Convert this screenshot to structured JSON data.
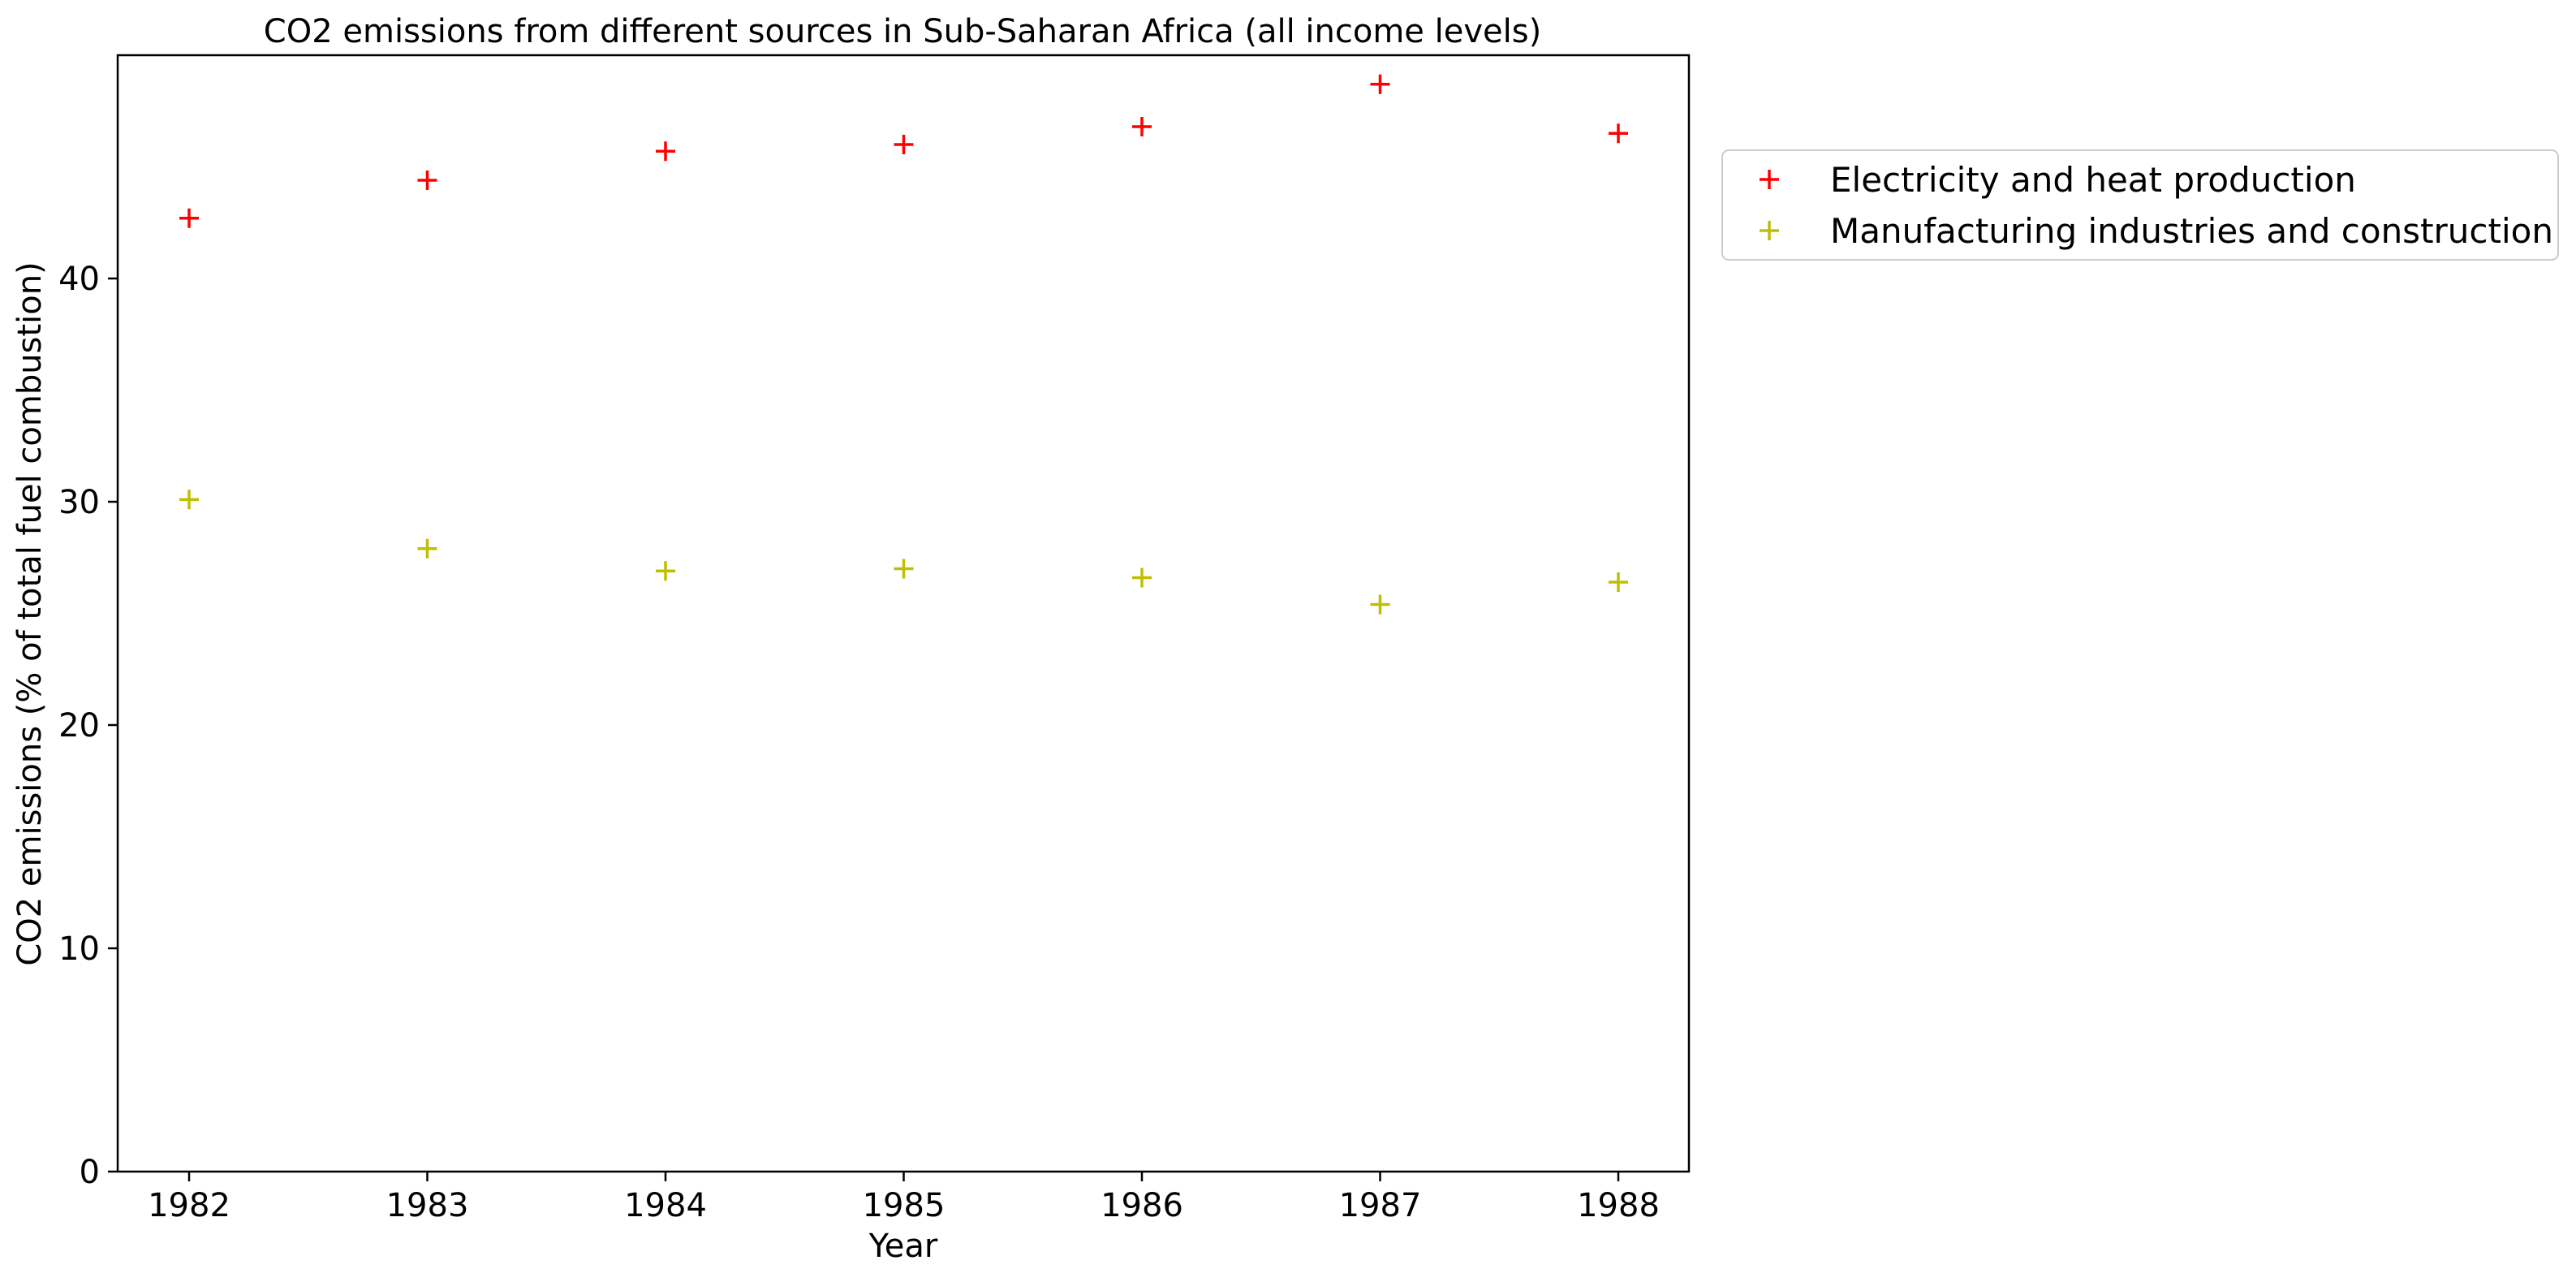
{
  "chart_data": {
    "type": "scatter",
    "title": "CO2 emissions from different sources in Sub-Saharan Africa (all income levels)",
    "xlabel": "Year",
    "ylabel": "CO2 emissions (% of total fuel combustion)",
    "x": [
      "1982",
      "1983",
      "1984",
      "1985",
      "1986",
      "1987",
      "1988"
    ],
    "ylim": [
      0,
      50
    ],
    "yticks": [
      "0",
      "10",
      "20",
      "30",
      "40"
    ],
    "grid": false,
    "legend_position": "outside-right-top",
    "marker": "+",
    "series": [
      {
        "name": "Electricity and heat production",
        "color": "#ff0000",
        "values": [
          42.7,
          44.4,
          45.7,
          46.0,
          46.8,
          48.7,
          46.5
        ]
      },
      {
        "name": "Manufacturing industries and construction",
        "color": "#bfbf00",
        "values": [
          30.1,
          27.9,
          26.9,
          27.0,
          26.6,
          25.4,
          26.4
        ]
      }
    ]
  }
}
